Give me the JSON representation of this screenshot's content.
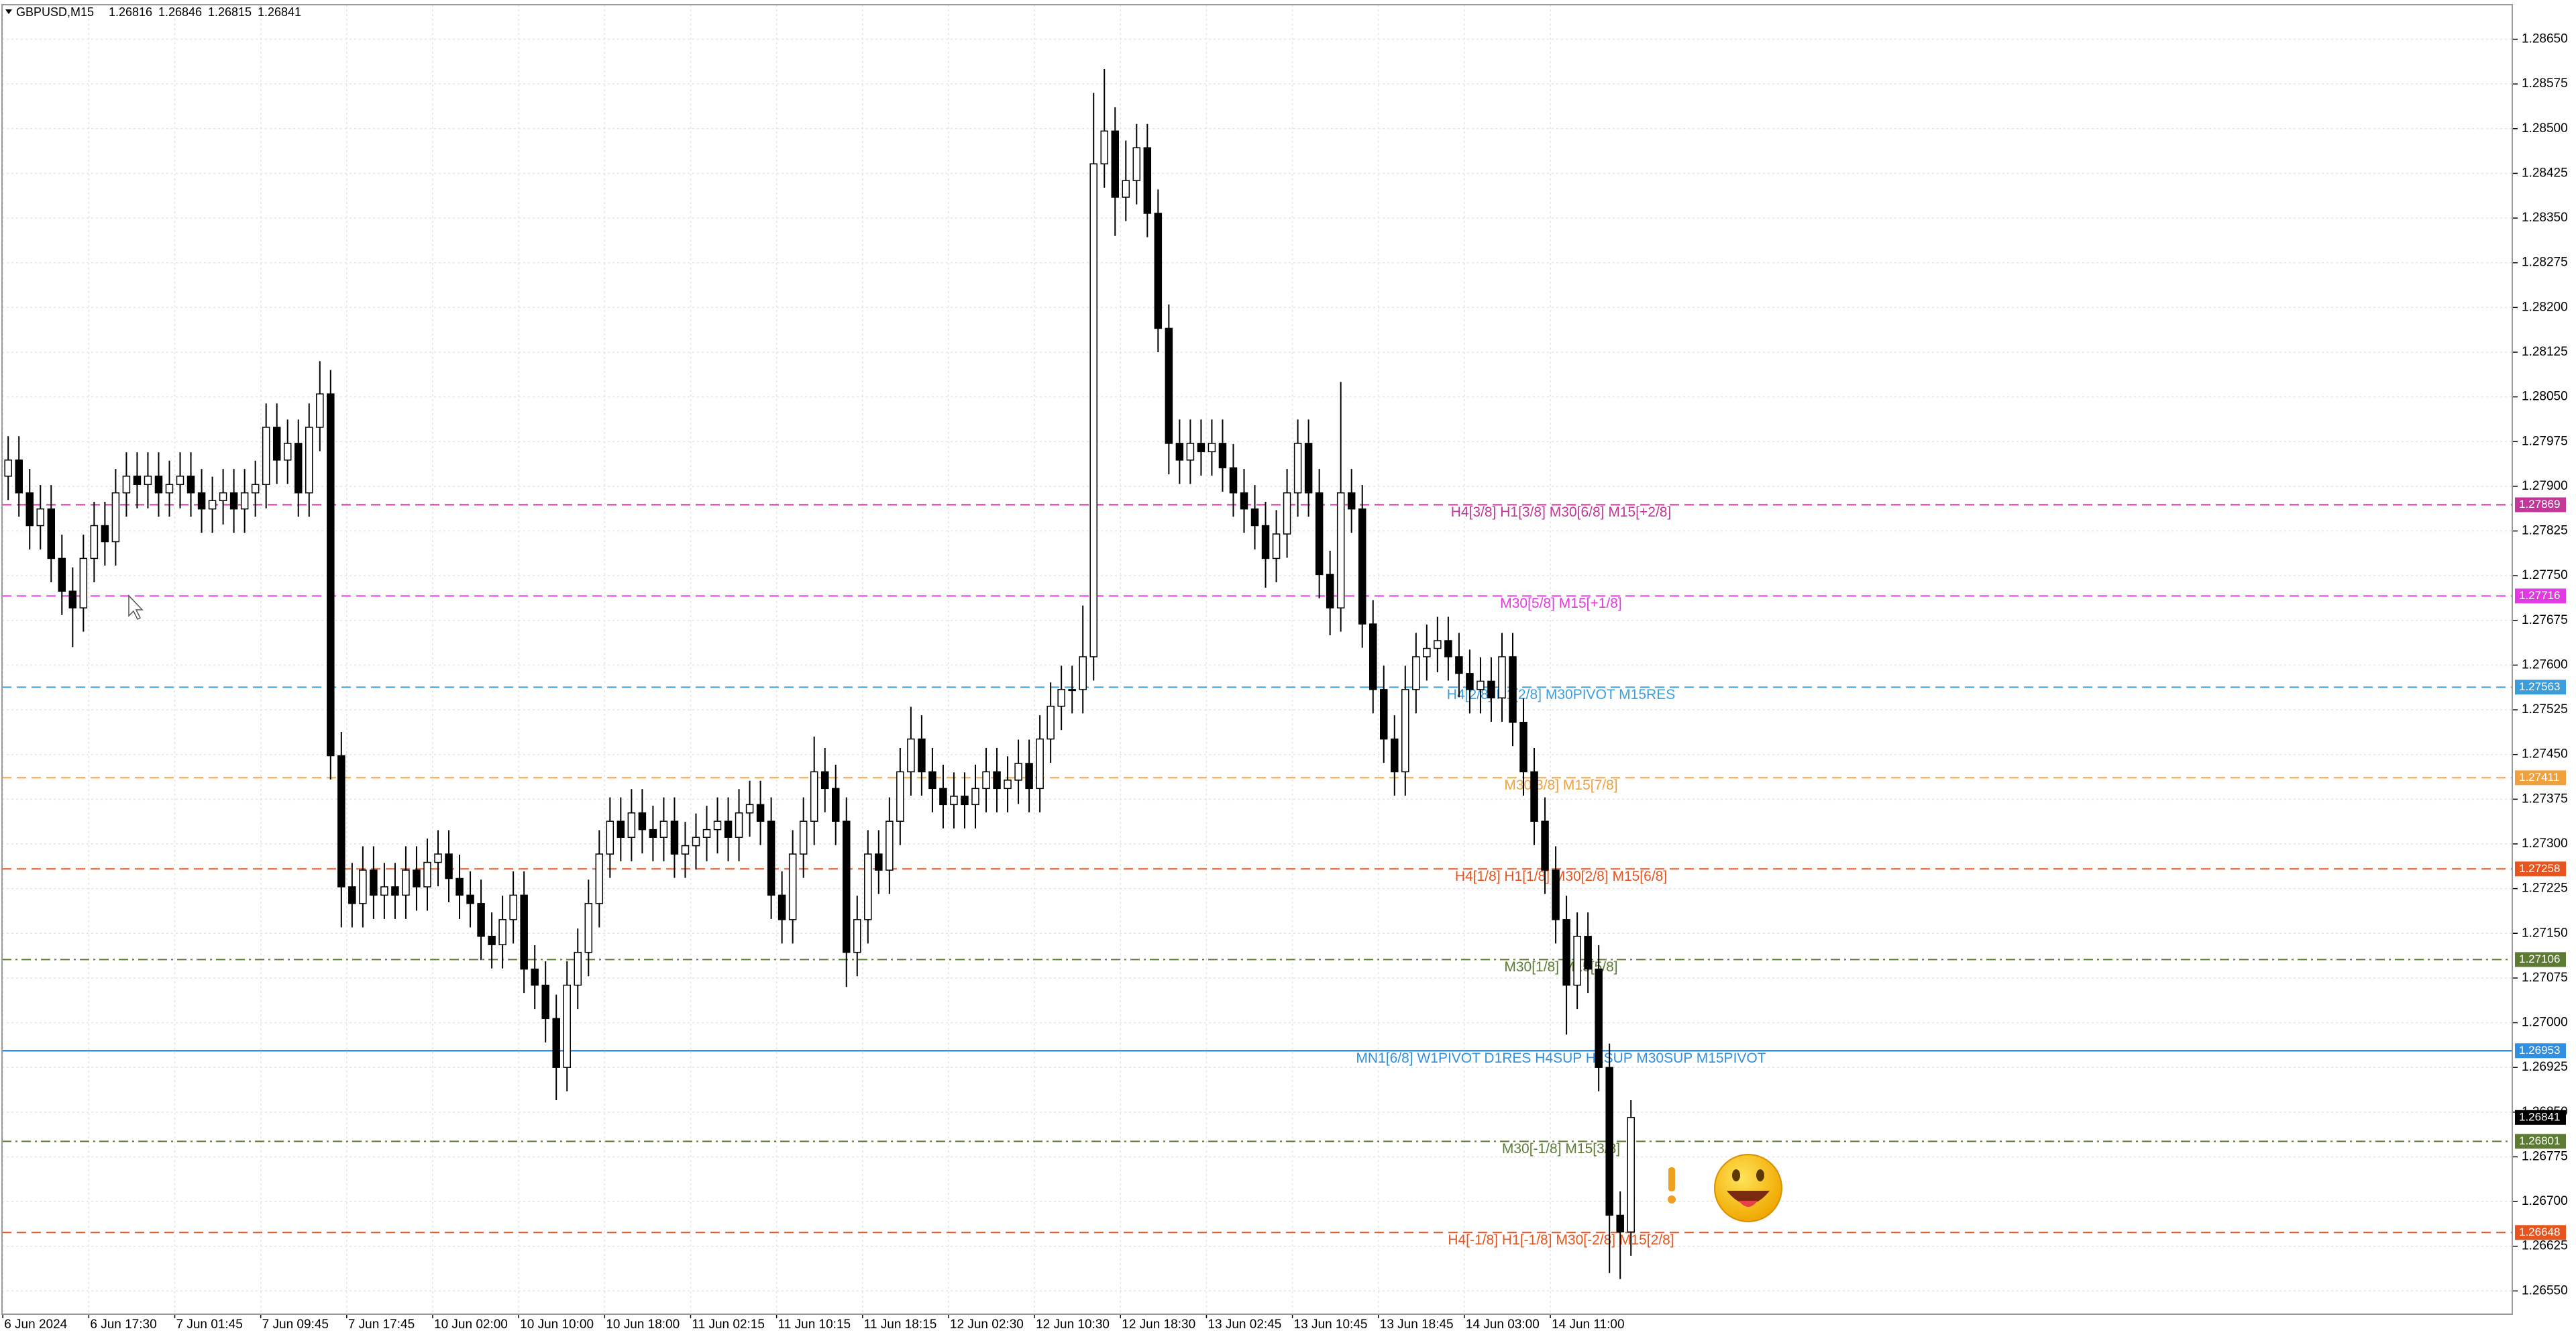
{
  "chart_data": {
    "type": "candlestick",
    "title": "GBPUSD,M15",
    "quote": [
      1.26816,
      1.26846,
      1.26815,
      1.26841
    ],
    "x_labels": [
      "6 Jun 2024",
      "6 Jun 17:30",
      "7 Jun 01:45",
      "7 Jun 09:45",
      "7 Jun 17:45",
      "10 Jun 02:00",
      "10 Jun 10:00",
      "10 Jun 18:00",
      "11 Jun 02:15",
      "11 Jun 10:15",
      "11 Jun 18:15",
      "12 Jun 02:30",
      "12 Jun 10:30",
      "12 Jun 18:30",
      "13 Jun 02:45",
      "13 Jun 10:45",
      "13 Jun 18:45",
      "14 Jun 03:00",
      "14 Jun 11:00"
    ],
    "open": [
      1.27917,
      1.27944,
      1.27889,
      1.27834,
      1.27862,
      1.27779,
      1.27724,
      1.27696,
      1.27779,
      1.27834,
      1.27807,
      1.27889,
      1.27917,
      1.27903,
      1.27917,
      1.27889,
      1.27903,
      1.27917,
      1.27889,
      1.27862,
      1.27876,
      1.27889,
      1.27862,
      1.27889,
      1.27903,
      1.27999,
      1.27944,
      1.27972,
      1.27889,
      1.27999,
      1.28055,
      1.27448,
      1.27228,
      1.272,
      1.27256,
      1.27214,
      1.27228,
      1.27214,
      1.27256,
      1.27228,
      1.27269,
      1.27283,
      1.27242,
      1.27214,
      1.272,
      1.27145,
      1.27131,
      1.27173,
      1.27214,
      1.2709,
      1.27063,
      1.27007,
      1.26925,
      1.27063,
      1.27118,
      1.272,
      1.27283,
      1.27338,
      1.27311,
      1.27352,
      1.27324,
      1.27311,
      1.27338,
      1.27283,
      1.27297,
      1.27311,
      1.27324,
      1.27338,
      1.27311,
      1.27352,
      1.27366,
      1.27338,
      1.27214,
      1.27173,
      1.27283,
      1.27338,
      1.27421,
      1.27393,
      1.27338,
      1.27118,
      1.27173,
      1.27283,
      1.27256,
      1.27338,
      1.27421,
      1.27476,
      1.27421,
      1.27393,
      1.27366,
      1.2738,
      1.27366,
      1.27393,
      1.27421,
      1.27393,
      1.27407,
      1.27435,
      1.27393,
      1.27476,
      1.27531,
      1.27559,
      1.27559,
      1.27614,
      1.28441,
      1.28496,
      1.28385,
      1.28413,
      1.28468,
      1.28358,
      1.28165,
      1.27972,
      1.27944,
      1.27972,
      1.27958,
      1.27972,
      1.27931,
      1.27889,
      1.27862,
      1.27834,
      1.27779,
      1.2782,
      1.27889,
      1.27972,
      1.27889,
      1.27752,
      1.27696,
      1.27889,
      1.27862,
      1.27669,
      1.27559,
      1.27476,
      1.27421,
      1.27559,
      1.27614,
      1.27628,
      1.27641,
      1.27614,
      1.27586,
      1.27559,
      1.27573,
      1.27545,
      1.27614,
      1.27504,
      1.27421,
      1.27338,
      1.27256,
      1.27173,
      1.27063,
      1.27145,
      1.2709,
      1.26925,
      1.26677,
      1.26649
    ],
    "high": [
      1.27984,
      1.27984,
      1.27929,
      1.27902,
      1.27902,
      1.27819,
      1.27764,
      1.27819,
      1.27874,
      1.27874,
      1.27929,
      1.27957,
      1.27957,
      1.27957,
      1.27957,
      1.27943,
      1.27957,
      1.27957,
      1.27929,
      1.27916,
      1.27929,
      1.27929,
      1.27929,
      1.27943,
      1.28039,
      1.28039,
      1.28012,
      1.28012,
      1.28039,
      1.2811,
      1.28095,
      1.27488,
      1.27268,
      1.27296,
      1.27296,
      1.27268,
      1.27268,
      1.27296,
      1.27296,
      1.27309,
      1.27323,
      1.27323,
      1.27282,
      1.27254,
      1.2724,
      1.27185,
      1.27213,
      1.27254,
      1.27254,
      1.2713,
      1.27103,
      1.27047,
      1.27103,
      1.27158,
      1.2724,
      1.27323,
      1.27378,
      1.27378,
      1.27392,
      1.27392,
      1.27364,
      1.27378,
      1.27378,
      1.27337,
      1.27351,
      1.27364,
      1.27378,
      1.27378,
      1.27392,
      1.27406,
      1.27406,
      1.27378,
      1.27254,
      1.27323,
      1.27378,
      1.2748,
      1.27461,
      1.27433,
      1.27378,
      1.27213,
      1.27323,
      1.27323,
      1.27378,
      1.27461,
      1.2753,
      1.27516,
      1.27461,
      1.27433,
      1.2742,
      1.2742,
      1.27433,
      1.27461,
      1.27461,
      1.27447,
      1.27475,
      1.27475,
      1.27516,
      1.27571,
      1.27599,
      1.27599,
      1.277,
      1.2856,
      1.286,
      1.28536,
      1.2848,
      1.28508,
      1.28508,
      1.28398,
      1.28205,
      1.28012,
      1.28012,
      1.28012,
      1.28012,
      1.28012,
      1.27971,
      1.27929,
      1.27902,
      1.27874,
      1.2786,
      1.27929,
      1.28012,
      1.28012,
      1.27929,
      1.27792,
      1.28075,
      1.27929,
      1.27902,
      1.27709,
      1.27599,
      1.27516,
      1.27599,
      1.27654,
      1.27668,
      1.27681,
      1.27681,
      1.27654,
      1.27626,
      1.27613,
      1.27613,
      1.27654,
      1.27654,
      1.27544,
      1.27461,
      1.27378,
      1.27296,
      1.27213,
      1.27185,
      1.27185,
      1.2713,
      1.26965,
      1.26717,
      1.2687
    ],
    "low": [
      1.27877,
      1.27849,
      1.27794,
      1.27794,
      1.27739,
      1.27684,
      1.2763,
      1.27656,
      1.27739,
      1.27767,
      1.27767,
      1.27849,
      1.27863,
      1.27863,
      1.27849,
      1.27849,
      1.27863,
      1.27849,
      1.27822,
      1.27822,
      1.27836,
      1.27822,
      1.27822,
      1.27849,
      1.27863,
      1.27904,
      1.27904,
      1.27849,
      1.27849,
      1.27959,
      1.27408,
      1.2716,
      1.2716,
      1.2716,
      1.27174,
      1.27174,
      1.27174,
      1.27174,
      1.27188,
      1.27188,
      1.27229,
      1.27202,
      1.27174,
      1.2716,
      1.27105,
      1.27091,
      1.27091,
      1.27133,
      1.2705,
      1.27023,
      1.26967,
      1.2687,
      1.26885,
      1.27023,
      1.27078,
      1.2716,
      1.27243,
      1.27271,
      1.27271,
      1.27284,
      1.27271,
      1.27271,
      1.27243,
      1.27243,
      1.27257,
      1.27271,
      1.27284,
      1.27271,
      1.27271,
      1.27312,
      1.27298,
      1.27174,
      1.27133,
      1.27133,
      1.27243,
      1.27298,
      1.27353,
      1.27298,
      1.2706,
      1.27078,
      1.27133,
      1.27216,
      1.27216,
      1.27298,
      1.27381,
      1.27381,
      1.27353,
      1.27326,
      1.27326,
      1.27326,
      1.27326,
      1.27353,
      1.27353,
      1.27353,
      1.27367,
      1.27353,
      1.27353,
      1.27436,
      1.27491,
      1.27519,
      1.27519,
      1.27574,
      1.28401,
      1.2832,
      1.28345,
      1.28373,
      1.28318,
      1.28125,
      1.2792,
      1.27904,
      1.27904,
      1.27918,
      1.27918,
      1.27891,
      1.27849,
      1.27822,
      1.27794,
      1.2773,
      1.27739,
      1.2778,
      1.27849,
      1.27849,
      1.27712,
      1.2765,
      1.27656,
      1.27822,
      1.27629,
      1.27519,
      1.27436,
      1.27381,
      1.27381,
      1.27519,
      1.27574,
      1.27588,
      1.27574,
      1.27546,
      1.27519,
      1.27519,
      1.27505,
      1.27505,
      1.27464,
      1.27381,
      1.27298,
      1.27216,
      1.27133,
      1.2698,
      1.27023,
      1.2705,
      1.26885,
      1.2658,
      1.2657,
      1.26609
    ],
    "close": [
      1.27944,
      1.27889,
      1.27834,
      1.27862,
      1.27779,
      1.27724,
      1.27696,
      1.27779,
      1.27834,
      1.27807,
      1.27889,
      1.27917,
      1.27903,
      1.27917,
      1.27889,
      1.27903,
      1.27917,
      1.27889,
      1.27862,
      1.27876,
      1.27889,
      1.27862,
      1.27889,
      1.27903,
      1.27999,
      1.27944,
      1.27972,
      1.27889,
      1.27999,
      1.28055,
      1.27448,
      1.27228,
      1.272,
      1.27256,
      1.27214,
      1.27228,
      1.27214,
      1.27256,
      1.27228,
      1.27269,
      1.27283,
      1.27242,
      1.27214,
      1.272,
      1.27145,
      1.27131,
      1.27173,
      1.27214,
      1.2709,
      1.27063,
      1.27007,
      1.26925,
      1.27063,
      1.27118,
      1.272,
      1.27283,
      1.27338,
      1.27311,
      1.27352,
      1.27324,
      1.27311,
      1.27338,
      1.27283,
      1.27297,
      1.27311,
      1.27324,
      1.27338,
      1.27311,
      1.27352,
      1.27366,
      1.27338,
      1.27214,
      1.27173,
      1.27283,
      1.27338,
      1.27421,
      1.27393,
      1.27338,
      1.27118,
      1.27173,
      1.27283,
      1.27256,
      1.27338,
      1.27421,
      1.27476,
      1.27421,
      1.27393,
      1.27366,
      1.2738,
      1.27366,
      1.27393,
      1.27421,
      1.27393,
      1.27407,
      1.27435,
      1.27393,
      1.27476,
      1.27531,
      1.27559,
      1.27559,
      1.27614,
      1.28441,
      1.28496,
      1.28385,
      1.28413,
      1.28468,
      1.28358,
      1.28165,
      1.27972,
      1.27944,
      1.27972,
      1.27958,
      1.27972,
      1.27931,
      1.27889,
      1.27862,
      1.27834,
      1.27779,
      1.2782,
      1.27889,
      1.27972,
      1.27889,
      1.27752,
      1.27696,
      1.27889,
      1.27862,
      1.27669,
      1.27559,
      1.27476,
      1.27421,
      1.27559,
      1.27614,
      1.27628,
      1.27641,
      1.27614,
      1.27586,
      1.27559,
      1.27573,
      1.27545,
      1.27614,
      1.27504,
      1.27421,
      1.27338,
      1.27256,
      1.27173,
      1.27063,
      1.27145,
      1.2709,
      1.26925,
      1.26677,
      1.26649,
      1.26841
    ],
    "up_color": "#ffffff",
    "down_color": "#000000",
    "ylim": [
      1.26511,
      1.28708
    ],
    "yticks": [
      {
        "value": 1.2865,
        "label": "1.28650"
      },
      1.28575,
      {
        "value": 1.285,
        "label": "1.28500"
      },
      1.28425,
      {
        "value": 1.2835,
        "label": "1.28350"
      },
      1.28275,
      {
        "value": 1.282,
        "label": "1.28200"
      },
      1.28125,
      {
        "value": 1.2805,
        "label": "1.28050"
      },
      1.27975,
      {
        "value": 1.279,
        "label": "1.27900"
      },
      1.27825,
      {
        "value": 1.2775,
        "label": "1.27750"
      },
      1.27675,
      {
        "value": 1.276,
        "label": "1.27600"
      },
      1.27525,
      {
        "value": 1.2745,
        "label": "1.27450"
      },
      1.27375,
      {
        "value": 1.273,
        "label": "1.27300"
      },
      1.27225,
      {
        "value": 1.2715,
        "label": "1.27150"
      },
      1.27075,
      {
        "value": 1.27,
        "label": "1.27000"
      },
      1.26925,
      {
        "value": 1.2685,
        "label": "1.26850"
      },
      1.26775,
      {
        "value": 1.267,
        "label": "1.26700"
      },
      1.26625,
      {
        "value": 1.2655,
        "label": "1.26550"
      }
    ],
    "grid": true,
    "levels": [
      {
        "name": "H4[3/8] H1[3/8] M30[6/8] M15[+2/8]",
        "value": 1.27869,
        "color": "#c2389a",
        "dash": "dashed"
      },
      {
        "name": "M30[5/8] M15[+1/8]",
        "value": 1.27716,
        "color": "#e23ae2",
        "dash": "dashed"
      },
      {
        "name": "H4[2/8] H1[2/8] M30PIVOT M15RES",
        "value": 1.27563,
        "color": "#3c9ddc",
        "dash": "dashed"
      },
      {
        "name": "M30[3/8] M15[7/8]",
        "value": 1.27411,
        "color": "#f0a03c",
        "dash": "dashed"
      },
      {
        "name": "H4[1/8] H1[1/8] M30[2/8] M15[6/8]",
        "value": 1.27258,
        "color": "#e8541e",
        "dash": "dashed"
      },
      {
        "name": "M30[1/8] M15[5/8]",
        "value": 1.27106,
        "color": "#5c7a32",
        "dash": "dashdot"
      },
      {
        "name": "MN1[6/8] W1PIVOT D1RES H4SUP H1SUP M30SUP M15PIVOT",
        "value": 1.26953,
        "color": "#2f8fe0",
        "dash": "solid"
      },
      {
        "name": "M30[-1/8] M15[3/8]",
        "value": 1.26801,
        "color": "#5c7a32",
        "dash": "dashdot"
      },
      {
        "name": "H4[-1/8] H1[-1/8] M30[-2/8] M15[2/8]",
        "value": 1.26648,
        "color": "#e8541e",
        "dash": "dashed"
      }
    ],
    "current_price": 1.26841
  }
}
